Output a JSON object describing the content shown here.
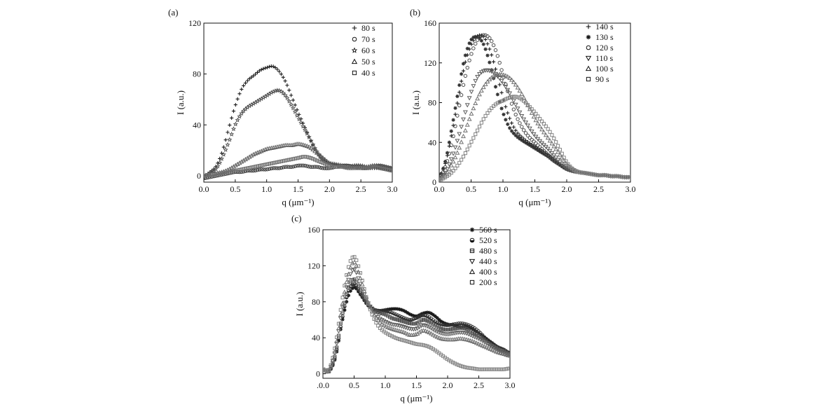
{
  "chart_data": [
    {
      "type": "scatter",
      "panel_label": "(a)",
      "xlabel": "q (μm⁻¹)",
      "ylabel": "I (a.u.)",
      "xlim": [
        0,
        3
      ],
      "ylim": [
        -5,
        120
      ],
      "x_ticks": [
        0,
        0.5,
        1,
        1.5,
        2,
        2.5,
        3
      ],
      "x_tick_labels": [
        "0.0",
        "0.5",
        "1.0",
        "1.5",
        "2.0",
        "2.5",
        "3.0"
      ],
      "y_ticks": [
        0,
        40,
        80,
        120
      ],
      "y_tick_labels": [
        "0",
        "40",
        "80",
        "120"
      ],
      "grid": false,
      "legend_position": "top-right",
      "x": [
        0,
        0.1,
        0.2,
        0.3,
        0.4,
        0.5,
        0.6,
        0.7,
        0.8,
        0.9,
        1.0,
        1.1,
        1.2,
        1.3,
        1.4,
        1.5,
        1.6,
        1.7,
        1.8,
        1.9,
        2.0,
        2.1,
        2.2,
        2.3,
        2.4,
        2.5,
        2.6,
        2.7,
        2.8,
        2.9,
        3.0
      ],
      "series": [
        {
          "name": "80 s",
          "marker": "+",
          "values": [
            0,
            3,
            8,
            20,
            38,
            55,
            68,
            75,
            79,
            83,
            85,
            86,
            82,
            74,
            62,
            50,
            39,
            28,
            18,
            12,
            10,
            9,
            8,
            7,
            8,
            7,
            6,
            6,
            6,
            5,
            4
          ]
        },
        {
          "name": "70 s",
          "marker": "○",
          "values": [
            -2,
            -1,
            0,
            1,
            2,
            3,
            3,
            4,
            4,
            5,
            5,
            6,
            6,
            7,
            7,
            8,
            8,
            7,
            7,
            6,
            6,
            7,
            8,
            8,
            7,
            6,
            6,
            7,
            8,
            7,
            6
          ]
        },
        {
          "name": "60 s",
          "marker": "☆",
          "values": [
            0,
            2,
            6,
            15,
            27,
            40,
            49,
            54,
            57,
            60,
            63,
            66,
            67,
            63,
            55,
            46,
            37,
            28,
            19,
            13,
            10,
            9,
            8,
            7,
            8,
            8,
            7,
            8,
            7,
            6,
            5
          ]
        },
        {
          "name": "50 s",
          "marker": "△",
          "values": [
            0,
            1,
            2,
            3,
            5,
            8,
            11,
            14,
            17,
            19,
            21,
            22,
            23,
            24,
            24,
            25,
            24,
            22,
            18,
            14,
            10,
            9,
            8,
            7,
            7,
            7,
            7,
            8,
            8,
            7,
            6
          ]
        },
        {
          "name": "40 s",
          "marker": "□",
          "values": [
            0,
            1,
            1,
            2,
            3,
            4,
            5,
            6,
            7,
            8,
            9,
            10,
            11,
            12,
            13,
            14,
            15,
            14,
            12,
            10,
            8,
            7,
            7,
            6,
            6,
            6,
            6,
            7,
            6,
            5,
            4
          ]
        }
      ]
    },
    {
      "type": "scatter",
      "panel_label": "(b)",
      "xlabel": "q (μm⁻¹)",
      "ylabel": "I (a.u.)",
      "xlim": [
        0,
        3
      ],
      "ylim": [
        0,
        160
      ],
      "x_ticks": [
        0,
        0.5,
        1,
        1.5,
        2,
        2.5,
        3
      ],
      "x_tick_labels": [
        "0.0",
        "0.5",
        "1.0",
        "1.5",
        "2.0",
        "2.5",
        "3.0"
      ],
      "y_ticks": [
        0,
        40,
        80,
        120,
        160
      ],
      "y_tick_labels": [
        "0",
        "40",
        "80",
        "120",
        "160"
      ],
      "grid": false,
      "legend_position": "top-right",
      "x": [
        0,
        0.1,
        0.2,
        0.3,
        0.4,
        0.5,
        0.6,
        0.7,
        0.8,
        0.9,
        1.0,
        1.1,
        1.2,
        1.3,
        1.4,
        1.5,
        1.6,
        1.7,
        1.8,
        1.9,
        2.0,
        2.1,
        2.2,
        2.3,
        2.4,
        2.5,
        2.6,
        2.7,
        2.8,
        2.9,
        3.0
      ],
      "series": [
        {
          "name": "140 s",
          "marker": "+",
          "values": [
            5,
            20,
            50,
            85,
            118,
            138,
            147,
            146,
            132,
            110,
            85,
            65,
            52,
            45,
            40,
            36,
            32,
            28,
            23,
            18,
            14,
            12,
            10,
            9,
            8,
            7,
            7,
            6,
            6,
            5,
            5
          ]
        },
        {
          "name": "130 s",
          "marker": "✱",
          "values": [
            5,
            22,
            55,
            92,
            125,
            143,
            146,
            138,
            118,
            92,
            70,
            55,
            47,
            42,
            38,
            34,
            30,
            26,
            21,
            17,
            13,
            11,
            10,
            9,
            8,
            7,
            7,
            6,
            6,
            5,
            5
          ]
        },
        {
          "name": "120 s",
          "marker": "○",
          "values": [
            4,
            16,
            40,
            72,
            104,
            128,
            143,
            148,
            144,
            130,
            108,
            86,
            68,
            55,
            46,
            40,
            34,
            28,
            22,
            17,
            13,
            11,
            10,
            9,
            8,
            7,
            7,
            6,
            6,
            5,
            5
          ]
        },
        {
          "name": "110 s",
          "marker": "▽",
          "values": [
            3,
            10,
            25,
            45,
            68,
            90,
            106,
            112,
            112,
            108,
            100,
            90,
            78,
            66,
            56,
            47,
            40,
            34,
            27,
            20,
            14,
            11,
            10,
            9,
            8,
            7,
            7,
            6,
            6,
            5,
            5
          ]
        },
        {
          "name": "100 s",
          "marker": "△",
          "values": [
            3,
            8,
            18,
            32,
            50,
            68,
            84,
            96,
            104,
            108,
            108,
            105,
            98,
            88,
            76,
            64,
            54,
            45,
            36,
            27,
            18,
            13,
            10,
            9,
            8,
            7,
            7,
            6,
            6,
            5,
            5
          ]
        },
        {
          "name": "90 s",
          "marker": "□",
          "values": [
            2,
            5,
            10,
            18,
            28,
            40,
            52,
            64,
            73,
            79,
            82,
            85,
            86,
            83,
            77,
            70,
            62,
            54,
            44,
            32,
            20,
            13,
            10,
            9,
            8,
            7,
            7,
            6,
            6,
            5,
            5
          ]
        }
      ]
    },
    {
      "type": "scatter",
      "panel_label": "(c)",
      "xlabel": "q (μm⁻¹)",
      "ylabel": "I (a.u.)",
      "xlim": [
        0,
        3
      ],
      "ylim": [
        -5,
        160
      ],
      "x_ticks": [
        0,
        0.5,
        1,
        1.5,
        2,
        2.5,
        3
      ],
      "x_tick_labels": [
        ".0.0",
        "0.5",
        "1.0",
        "1.5",
        "2.0",
        "2.5",
        "3.0"
      ],
      "y_ticks": [
        0,
        40,
        80,
        120,
        160
      ],
      "y_tick_labels": [
        "0",
        "40",
        "80",
        "120",
        "160"
      ],
      "grid": false,
      "legend_position": "top-right",
      "x": [
        0,
        0.1,
        0.2,
        0.3,
        0.4,
        0.5,
        0.6,
        0.7,
        0.8,
        0.9,
        1.0,
        1.1,
        1.2,
        1.3,
        1.4,
        1.5,
        1.6,
        1.7,
        1.8,
        1.9,
        2.0,
        2.1,
        2.2,
        2.3,
        2.4,
        2.5,
        2.6,
        2.7,
        2.8,
        2.9,
        3.0
      ],
      "series": [
        {
          "name": "560 s",
          "marker": "✱",
          "values": [
            5,
            3,
            18,
            55,
            85,
            96,
            88,
            78,
            72,
            70,
            71,
            72,
            72,
            70,
            66,
            64,
            67,
            68,
            64,
            58,
            55,
            54,
            52,
            52,
            50,
            45,
            40,
            35,
            30,
            27,
            23
          ]
        },
        {
          "name": "520 s",
          "marker": "◒",
          "values": [
            5,
            3,
            20,
            58,
            90,
            100,
            90,
            78,
            72,
            70,
            70,
            68,
            65,
            62,
            60,
            62,
            65,
            63,
            58,
            55,
            54,
            55,
            56,
            55,
            52,
            47,
            40,
            34,
            29,
            26,
            23
          ]
        },
        {
          "name": "480 s",
          "marker": "⊟",
          "values": [
            5,
            3,
            22,
            62,
            94,
            105,
            93,
            80,
            72,
            68,
            66,
            62,
            60,
            58,
            56,
            56,
            60,
            58,
            54,
            50,
            49,
            50,
            51,
            50,
            46,
            42,
            37,
            32,
            28,
            25,
            22
          ]
        },
        {
          "name": "440 s",
          "marker": "▽",
          "values": [
            5,
            4,
            26,
            68,
            102,
            116,
            100,
            82,
            70,
            62,
            58,
            55,
            54,
            52,
            50,
            50,
            54,
            52,
            48,
            45,
            44,
            45,
            46,
            45,
            42,
            39,
            35,
            31,
            27,
            24,
            21
          ]
        },
        {
          "name": "400 s",
          "marker": "△",
          "values": [
            5,
            4,
            28,
            72,
            108,
            124,
            106,
            84,
            68,
            58,
            53,
            50,
            48,
            46,
            43,
            44,
            48,
            46,
            42,
            39,
            38,
            38,
            39,
            38,
            36,
            33,
            30,
            27,
            24,
            22,
            20
          ]
        },
        {
          "name": "200 s",
          "marker": "□",
          "values": [
            5,
            5,
            32,
            78,
            116,
            130,
            112,
            84,
            64,
            52,
            46,
            42,
            39,
            37,
            35,
            33,
            32,
            30,
            26,
            21,
            16,
            12,
            9,
            7,
            6,
            5,
            5,
            5,
            5,
            5,
            6
          ]
        }
      ]
    }
  ]
}
